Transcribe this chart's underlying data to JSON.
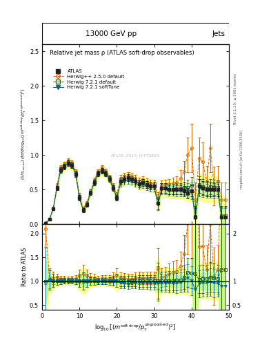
{
  "title_center": "13000 GeV pp",
  "title_right": "Jets",
  "plot_title": "Relative jet mass ρ (ATLAS soft-drop observables)",
  "ylabel_main": "$(1/\\sigma_{resum})$ $d\\sigma/d\\log_{10}[(m^{\\rm soft\\ drop}/p_{\\rm T}^{\\rm ungroomed})^2]$",
  "ylabel_ratio": "Ratio to ATLAS",
  "xlabel": "$\\log_{10}[(m^{\\rm soft\\ drop}/p_{\\rm T}^{\\rm ungroomed})^2]$",
  "right_label1": "Rivet 3.1.10; ≥ 500k events",
  "right_label2": "mcplots.cern.ch [arXiv:1306.3436]",
  "watermark": "ATLAS_2019_I1772819",
  "xlim": [
    0,
    50
  ],
  "ylim_main": [
    0,
    2.6
  ],
  "ylim_ratio": [
    0.4,
    2.2
  ],
  "atlas_x": [
    1,
    2,
    3,
    4,
    5,
    6,
    7,
    8,
    9,
    10,
    11,
    12,
    13,
    14,
    15,
    16,
    17,
    18,
    19,
    20,
    21,
    22,
    23,
    24,
    25,
    26,
    27,
    28,
    29,
    30,
    31,
    32,
    33,
    34,
    35,
    36,
    37,
    38,
    39,
    40,
    41,
    42,
    43,
    44,
    45,
    46,
    47,
    48,
    49
  ],
  "atlas_y": [
    0.01,
    0.07,
    0.22,
    0.52,
    0.78,
    0.83,
    0.88,
    0.85,
    0.72,
    0.38,
    0.2,
    0.28,
    0.45,
    0.6,
    0.73,
    0.77,
    0.73,
    0.65,
    0.52,
    0.38,
    0.62,
    0.65,
    0.67,
    0.65,
    0.62,
    0.58,
    0.6,
    0.57,
    0.55,
    0.55,
    0.3,
    0.52,
    0.52,
    0.5,
    0.5,
    0.5,
    0.5,
    0.48,
    0.45,
    0.48,
    0.1,
    0.55,
    0.52,
    0.5,
    0.5,
    0.5,
    0.5,
    0.1,
    0.1
  ],
  "atlas_yerr": [
    0.005,
    0.01,
    0.02,
    0.03,
    0.04,
    0.04,
    0.04,
    0.04,
    0.04,
    0.04,
    0.03,
    0.03,
    0.03,
    0.04,
    0.04,
    0.04,
    0.04,
    0.04,
    0.04,
    0.04,
    0.05,
    0.05,
    0.05,
    0.05,
    0.05,
    0.05,
    0.05,
    0.05,
    0.05,
    0.05,
    0.08,
    0.07,
    0.07,
    0.07,
    0.07,
    0.07,
    0.07,
    0.07,
    0.07,
    0.08,
    0.15,
    0.1,
    0.1,
    0.1,
    0.1,
    0.1,
    0.1,
    0.15,
    0.15
  ],
  "herwig_pp_y": [
    0.021,
    0.074,
    0.236,
    0.56,
    0.82,
    0.87,
    0.92,
    0.89,
    0.76,
    0.42,
    0.23,
    0.31,
    0.49,
    0.64,
    0.76,
    0.82,
    0.77,
    0.68,
    0.56,
    0.43,
    0.66,
    0.69,
    0.7,
    0.68,
    0.66,
    0.62,
    0.64,
    0.61,
    0.59,
    0.59,
    0.38,
    0.56,
    0.57,
    0.58,
    0.59,
    0.6,
    0.66,
    0.76,
    1.0,
    1.1,
    0.35,
    0.95,
    0.9,
    0.62,
    1.1,
    0.55,
    0.62,
    0.35,
    0.35
  ],
  "herwig_pp_yerr": [
    0.005,
    0.01,
    0.02,
    0.03,
    0.03,
    0.03,
    0.03,
    0.03,
    0.03,
    0.03,
    0.02,
    0.02,
    0.02,
    0.03,
    0.03,
    0.03,
    0.03,
    0.03,
    0.03,
    0.03,
    0.05,
    0.05,
    0.05,
    0.05,
    0.05,
    0.05,
    0.05,
    0.05,
    0.05,
    0.05,
    0.08,
    0.07,
    0.07,
    0.07,
    0.08,
    0.09,
    0.12,
    0.15,
    0.25,
    0.35,
    0.25,
    0.3,
    0.28,
    0.22,
    0.35,
    0.28,
    0.22,
    0.25,
    0.25
  ],
  "herwig721d_y": [
    0.01,
    0.072,
    0.222,
    0.525,
    0.785,
    0.835,
    0.885,
    0.855,
    0.724,
    0.382,
    0.202,
    0.283,
    0.453,
    0.603,
    0.733,
    0.773,
    0.733,
    0.653,
    0.522,
    0.382,
    0.622,
    0.652,
    0.672,
    0.652,
    0.622,
    0.582,
    0.602,
    0.572,
    0.552,
    0.552,
    0.302,
    0.522,
    0.525,
    0.505,
    0.505,
    0.51,
    0.515,
    0.52,
    0.53,
    0.56,
    0.115,
    0.57,
    0.545,
    0.525,
    0.545,
    0.535,
    0.53,
    0.125,
    0.125
  ],
  "herwig721d_yerr": [
    0.005,
    0.01,
    0.02,
    0.03,
    0.03,
    0.03,
    0.03,
    0.03,
    0.03,
    0.03,
    0.02,
    0.02,
    0.02,
    0.03,
    0.03,
    0.03,
    0.03,
    0.03,
    0.03,
    0.03,
    0.05,
    0.05,
    0.05,
    0.05,
    0.05,
    0.05,
    0.05,
    0.05,
    0.05,
    0.05,
    0.08,
    0.07,
    0.07,
    0.07,
    0.07,
    0.08,
    0.08,
    0.09,
    0.11,
    0.12,
    0.15,
    0.12,
    0.11,
    0.1,
    0.11,
    0.11,
    0.1,
    0.14,
    0.14
  ],
  "herwig721s_y": [
    0.01,
    0.072,
    0.222,
    0.525,
    0.785,
    0.835,
    0.885,
    0.855,
    0.724,
    0.382,
    0.202,
    0.283,
    0.453,
    0.603,
    0.733,
    0.773,
    0.733,
    0.653,
    0.522,
    0.382,
    0.595,
    0.618,
    0.63,
    0.618,
    0.596,
    0.558,
    0.574,
    0.544,
    0.524,
    0.524,
    0.285,
    0.498,
    0.498,
    0.48,
    0.478,
    0.48,
    0.485,
    0.49,
    0.48,
    0.485,
    0.082,
    0.52,
    0.5,
    0.48,
    0.49,
    0.48,
    0.478,
    0.09,
    0.09
  ],
  "herwig721s_yerr": [
    0.005,
    0.01,
    0.02,
    0.03,
    0.03,
    0.03,
    0.03,
    0.03,
    0.03,
    0.03,
    0.02,
    0.02,
    0.02,
    0.03,
    0.03,
    0.03,
    0.03,
    0.03,
    0.03,
    0.03,
    0.05,
    0.05,
    0.05,
    0.05,
    0.05,
    0.05,
    0.05,
    0.05,
    0.05,
    0.05,
    0.08,
    0.07,
    0.07,
    0.07,
    0.07,
    0.08,
    0.08,
    0.09,
    0.11,
    0.12,
    0.15,
    0.12,
    0.11,
    0.1,
    0.11,
    0.11,
    0.1,
    0.14,
    0.14
  ],
  "atlas_color": "#222222",
  "herwig_pp_color": "#cc6600",
  "herwig721d_color": "#336600",
  "herwig721s_color": "#006688",
  "band_yellow": "#ffff66",
  "band_green": "#88ee88",
  "band_teal": "#66cccc"
}
